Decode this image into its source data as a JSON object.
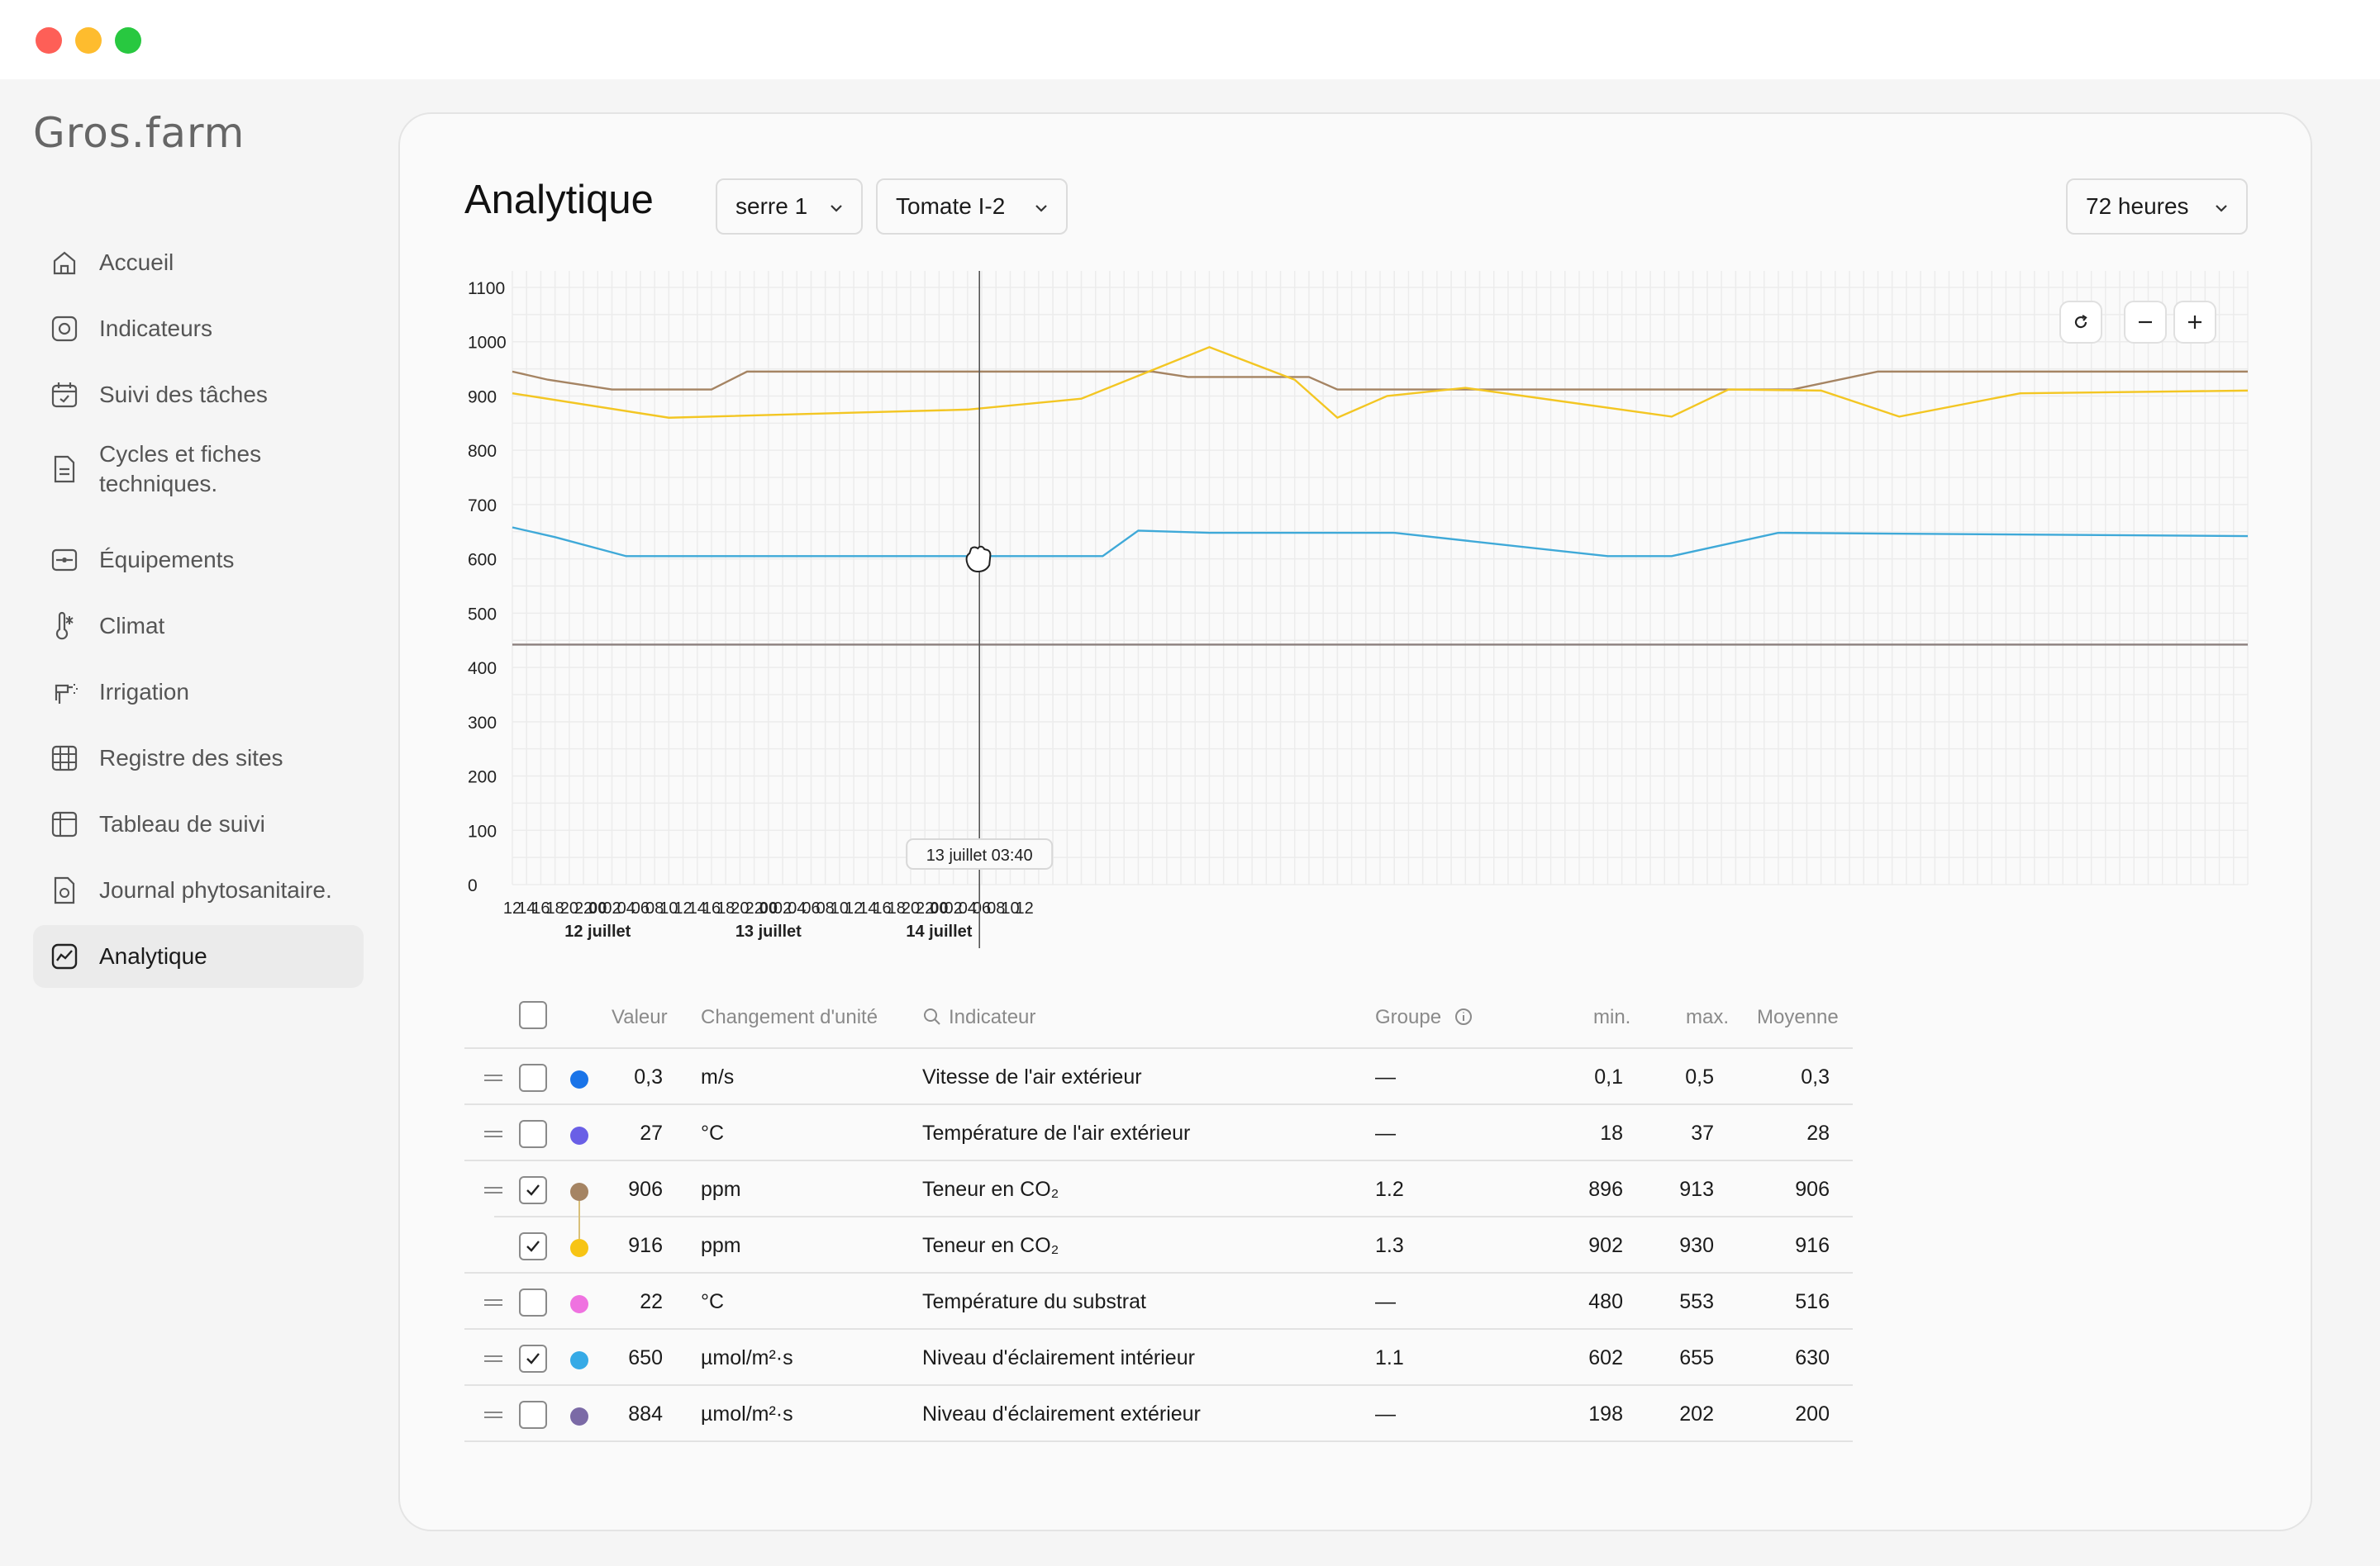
{
  "app": {
    "logo": "Gros.farm"
  },
  "sidebar": {
    "items": [
      {
        "label": "Accueil",
        "icon": "home-icon",
        "active": false
      },
      {
        "label": "Indicateurs",
        "icon": "indicators-icon",
        "active": false
      },
      {
        "label": "Suivi des tâches",
        "icon": "calendar-check-icon",
        "active": false
      },
      {
        "label": "Cycles et fiches techniques.",
        "icon": "document-icon",
        "active": false
      },
      {
        "label": "Équipements",
        "icon": "equipment-icon",
        "active": false
      },
      {
        "label": "Climat",
        "icon": "thermometer-icon",
        "active": false
      },
      {
        "label": "Irrigation",
        "icon": "irrigation-icon",
        "active": false
      },
      {
        "label": "Registre des sites",
        "icon": "grid-icon",
        "active": false
      },
      {
        "label": "Tableau de suivi",
        "icon": "table-icon",
        "active": false
      },
      {
        "label": "Journal phytosanitaire.",
        "icon": "journal-icon",
        "active": false
      },
      {
        "label": "Analytique",
        "icon": "analytics-icon",
        "active": true
      }
    ]
  },
  "header": {
    "title": "Analytique",
    "selects": {
      "greenhouse": "serre 1",
      "crop": "Tomate I-2",
      "range": "72 heures"
    }
  },
  "chart_data": {
    "type": "line",
    "ylim": [
      0,
      1100
    ],
    "yticks": [
      0,
      100,
      200,
      300,
      400,
      500,
      600,
      700,
      800,
      900,
      1000,
      1100
    ],
    "x_tick_labels": [
      "12",
      "14",
      "16",
      "18",
      "20",
      "22",
      "00",
      "02",
      "04",
      "06",
      "08",
      "10",
      "12",
      "14",
      "16",
      "18",
      "20",
      "22",
      "00",
      "02",
      "04",
      "06",
      "08",
      "10",
      "12",
      "14",
      "16",
      "18",
      "20",
      "22",
      "00",
      "02",
      "04",
      "06",
      "08",
      "10",
      "12"
    ],
    "x_day_labels": [
      {
        "after_index": 6,
        "label": "12 juillet"
      },
      {
        "after_index": 18,
        "label": "13 juillet"
      },
      {
        "after_index": 30,
        "label": "14 juillet"
      }
    ],
    "cursor_label": "13 juillet 03:40",
    "series": [
      {
        "color": "#a58463",
        "x": [
          12,
          17,
          26,
          40,
          45,
          76,
          81,
          98,
          102,
          107,
          124,
          128,
          153,
          192,
          204,
          218,
          217,
          244,
          256
        ],
        "values": [
          945,
          930,
          912,
          912,
          945,
          945,
          945,
          945,
          945,
          935,
          935,
          912,
          912,
          912,
          945,
          945,
          945,
          945,
          945
        ]
      },
      {
        "color": "#f3c623",
        "x": [
          12,
          34,
          76,
          92,
          110,
          122,
          128,
          135,
          146,
          175,
          183,
          196,
          207,
          224,
          256
        ],
        "values": [
          905,
          860,
          875,
          895,
          990,
          930,
          860,
          900,
          915,
          862,
          912,
          910,
          862,
          905,
          910
        ]
      },
      {
        "color": "#3fa9d8",
        "x": [
          12,
          18,
          28,
          48,
          70,
          95,
          100,
          110,
          136,
          166,
          175,
          190,
          256
        ],
        "values": [
          658,
          640,
          605,
          605,
          605,
          605,
          652,
          648,
          648,
          605,
          605,
          648,
          642
        ]
      },
      {
        "color": "#8b7f7d",
        "x": [
          12,
          256
        ],
        "values": [
          442,
          442
        ]
      }
    ]
  },
  "zoom": {
    "reset": "reset-icon",
    "minus": "minus-icon",
    "plus": "plus-icon"
  },
  "table": {
    "headers": {
      "value": "Valeur",
      "unit": "Changement d'unité",
      "indicator": "Indicateur",
      "group": "Groupe",
      "min": "min.",
      "max": "max.",
      "mean": "Moyenne"
    },
    "rows": [
      {
        "value": "0,3",
        "unit": "m/s",
        "indicator": "Vitesse de l'air extérieur",
        "group": "—",
        "min": "0,1",
        "max": "0,5",
        "mean": "0,3",
        "checked": false,
        "color": "#1a74e8",
        "drag": true
      },
      {
        "value": "27",
        "unit": "°C",
        "indicator": "Température de l'air extérieur",
        "group": "—",
        "min": "18",
        "max": "37",
        "mean": "28",
        "checked": false,
        "color": "#6a5fe6",
        "drag": true
      },
      {
        "value": "906",
        "unit": "ppm",
        "indicator": "Teneur en CO₂",
        "group": "1.2",
        "min": "896",
        "max": "913",
        "mean": "906",
        "checked": true,
        "color": "#a58463",
        "drag": true
      },
      {
        "value": "916",
        "unit": "ppm",
        "indicator": "Teneur en CO₂",
        "group": "1.3",
        "min": "902",
        "max": "930",
        "mean": "916",
        "checked": true,
        "color": "#f7c414",
        "drag": false
      },
      {
        "value": "22",
        "unit": "°C",
        "indicator": "Température du substrat",
        "group": "—",
        "min": "480",
        "max": "553",
        "mean": "516",
        "checked": false,
        "color": "#ef72e0",
        "drag": true
      },
      {
        "value": "650",
        "unit": "µmol/m²·s",
        "indicator": "Niveau d'éclairement intérieur",
        "group": "1.1",
        "min": "602",
        "max": "655",
        "mean": "630",
        "checked": true,
        "color": "#36aae6",
        "drag": true
      },
      {
        "value": "884",
        "unit": "µmol/m²·s",
        "indicator": "Niveau d'éclairement extérieur",
        "group": "—",
        "min": "198",
        "max": "202",
        "mean": "200",
        "checked": false,
        "color": "#7b6aa6",
        "drag": true
      }
    ]
  }
}
